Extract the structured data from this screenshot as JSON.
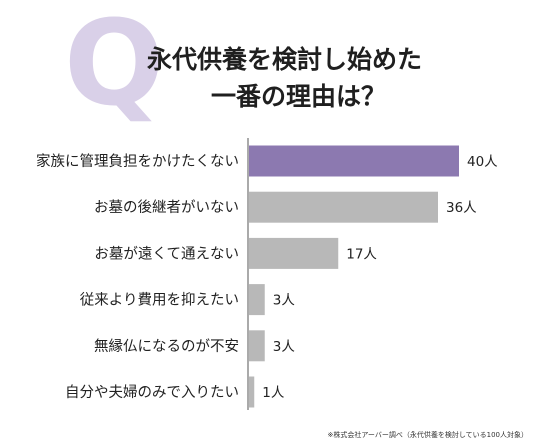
{
  "header": {
    "q_mark": "Q",
    "title_line1": "永代供養を検討し始めた",
    "title_line2": "一番の理由は？"
  },
  "chart_data": {
    "type": "bar",
    "orientation": "horizontal",
    "categories": [
      "家族に管理負担をかけたくない",
      "お墓の後継者がいない",
      "お墓が遠くて通えない",
      "従来より費用を抑えたい",
      "無縁仏になるのが不安",
      "自分や夫婦のみで入りたい"
    ],
    "values": [
      40,
      36,
      17,
      3,
      3,
      1
    ],
    "value_labels": [
      "40人",
      "36人",
      "17人",
      "3人",
      "3人",
      "1人"
    ],
    "unit": "人",
    "title": "永代供養を検討し始めた一番の理由は？",
    "colors": {
      "highlight": "#8c79b0",
      "default": "#b8b8b8",
      "axis": "#555555"
    },
    "highlight_index": 0
  },
  "footnote": "※株式会社アーバー調べ（永代供養を検討している100人対象）"
}
